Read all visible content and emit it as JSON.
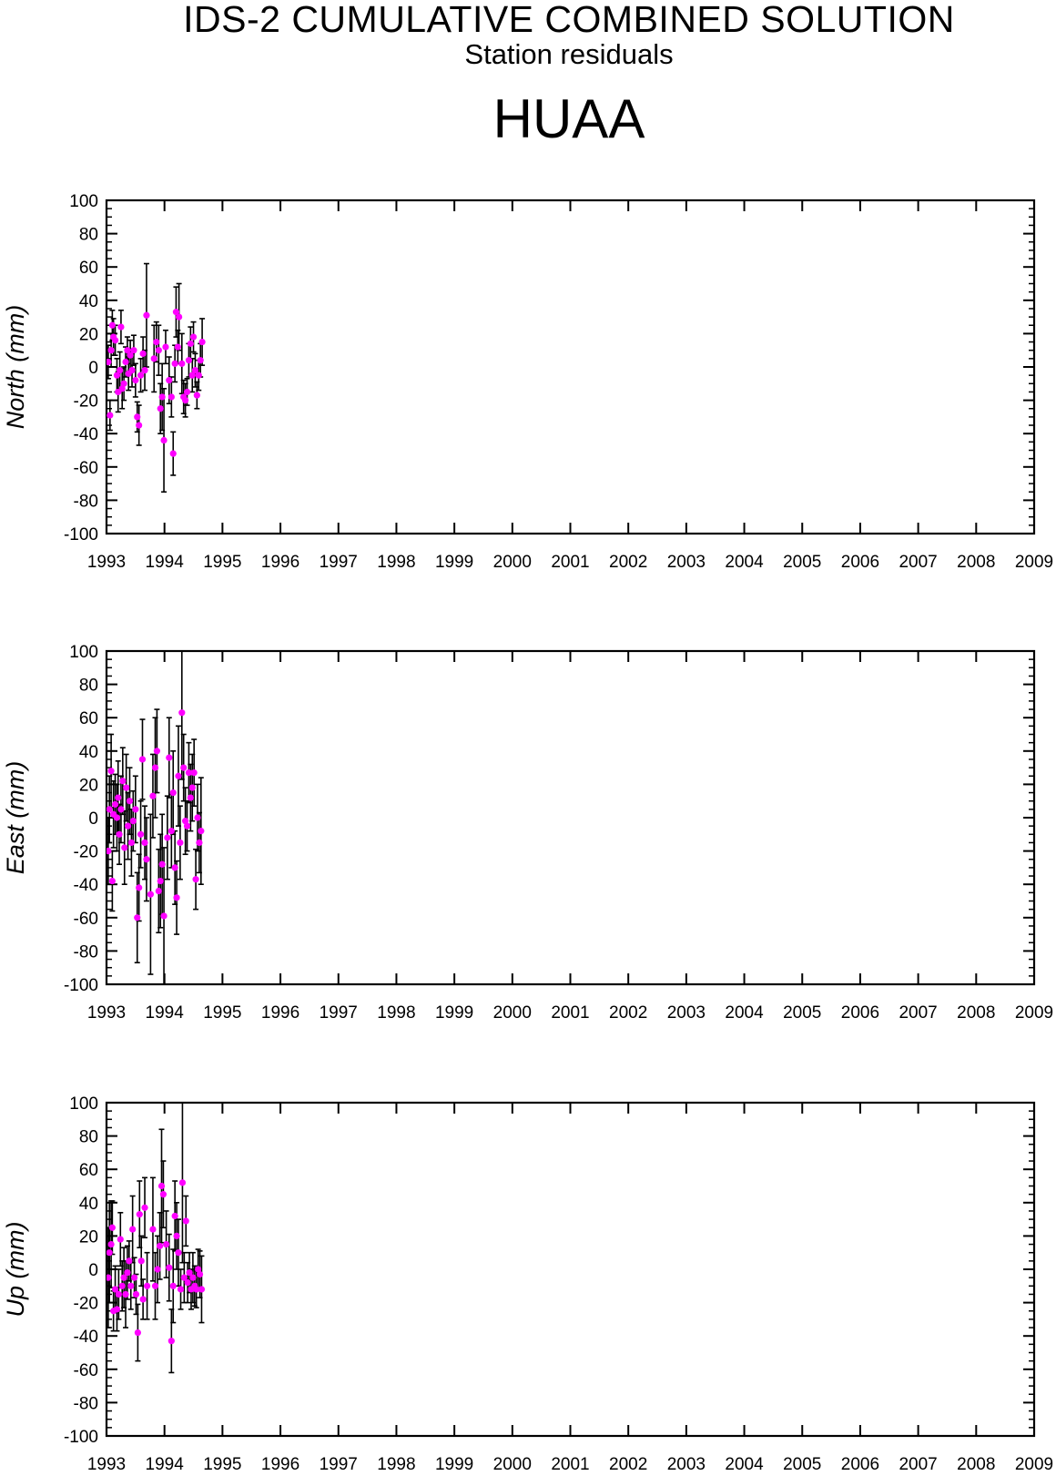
{
  "header": {
    "title": "IDS-2 CUMULATIVE COMBINED SOLUTION",
    "subtitle": "Station residuals",
    "station": "HUAA"
  },
  "colors": {
    "marker": "#ff00ff",
    "errorbar": "#000000",
    "axis": "#000000"
  },
  "chart_data": [
    {
      "type": "scatter",
      "ylabel": "North (mm)",
      "ylim": [
        -100,
        100
      ],
      "xlim": [
        1993,
        2009
      ],
      "x_ticks": [
        "1993",
        "1994",
        "1995",
        "1996",
        "1997",
        "1998",
        "1999",
        "2000",
        "2001",
        "2002",
        "2003",
        "2004",
        "2005",
        "2006",
        "2007",
        "2008",
        "2009"
      ],
      "y_ticks": [
        "100",
        "80",
        "60",
        "40",
        "20",
        "0",
        "-20",
        "-40",
        "-60",
        "-80",
        "-100"
      ],
      "grid": false,
      "points": [
        {
          "x": 1993.03,
          "y": 3,
          "e": 10
        },
        {
          "x": 1993.06,
          "y": -29,
          "e": 9
        },
        {
          "x": 1993.08,
          "y": 10,
          "e": 10
        },
        {
          "x": 1993.1,
          "y": 25,
          "e": 9
        },
        {
          "x": 1993.12,
          "y": 18,
          "e": 11
        },
        {
          "x": 1993.15,
          "y": 16,
          "e": 9
        },
        {
          "x": 1993.18,
          "y": -5,
          "e": 10
        },
        {
          "x": 1993.2,
          "y": -15,
          "e": 12
        },
        {
          "x": 1993.23,
          "y": -2,
          "e": 11
        },
        {
          "x": 1993.25,
          "y": 24,
          "e": 10
        },
        {
          "x": 1993.27,
          "y": -13,
          "e": 12
        },
        {
          "x": 1993.3,
          "y": -10,
          "e": 10
        },
        {
          "x": 1993.33,
          "y": 3,
          "e": 9
        },
        {
          "x": 1993.36,
          "y": 10,
          "e": 8
        },
        {
          "x": 1993.38,
          "y": -4,
          "e": 10
        },
        {
          "x": 1993.41,
          "y": 7,
          "e": 9
        },
        {
          "x": 1993.44,
          "y": -2,
          "e": 10
        },
        {
          "x": 1993.47,
          "y": 10,
          "e": 9
        },
        {
          "x": 1993.5,
          "y": -8,
          "e": 10
        },
        {
          "x": 1993.53,
          "y": -30,
          "e": 9
        },
        {
          "x": 1993.56,
          "y": -35,
          "e": 12
        },
        {
          "x": 1993.59,
          "y": -5,
          "e": 10
        },
        {
          "x": 1993.63,
          "y": 8,
          "e": 10
        },
        {
          "x": 1993.66,
          "y": -2,
          "e": 12
        },
        {
          "x": 1993.69,
          "y": 31,
          "e": 31
        },
        {
          "x": 1993.82,
          "y": 5,
          "e": 20
        },
        {
          "x": 1993.86,
          "y": 15,
          "e": 12
        },
        {
          "x": 1993.9,
          "y": 10,
          "e": 15
        },
        {
          "x": 1993.93,
          "y": -25,
          "e": 15
        },
        {
          "x": 1993.96,
          "y": -18,
          "e": 20
        },
        {
          "x": 1993.99,
          "y": -44,
          "e": 31
        },
        {
          "x": 1994.02,
          "y": 12,
          "e": 10
        },
        {
          "x": 1994.08,
          "y": -8,
          "e": 14
        },
        {
          "x": 1994.12,
          "y": -18,
          "e": 12
        },
        {
          "x": 1994.15,
          "y": -52,
          "e": 13
        },
        {
          "x": 1994.18,
          "y": 2,
          "e": 11
        },
        {
          "x": 1994.2,
          "y": 33,
          "e": 15
        },
        {
          "x": 1994.23,
          "y": 12,
          "e": 10
        },
        {
          "x": 1994.25,
          "y": 30,
          "e": 20
        },
        {
          "x": 1994.3,
          "y": 2,
          "e": 18
        },
        {
          "x": 1994.33,
          "y": -18,
          "e": 10
        },
        {
          "x": 1994.36,
          "y": -20,
          "e": 10
        },
        {
          "x": 1994.39,
          "y": -15,
          "e": 8
        },
        {
          "x": 1994.42,
          "y": 4,
          "e": 10
        },
        {
          "x": 1994.45,
          "y": 14,
          "e": 10
        },
        {
          "x": 1994.48,
          "y": -5,
          "e": 10
        },
        {
          "x": 1994.5,
          "y": 18,
          "e": 9
        },
        {
          "x": 1994.53,
          "y": -2,
          "e": 10
        },
        {
          "x": 1994.56,
          "y": -17,
          "e": 8
        },
        {
          "x": 1994.59,
          "y": -5,
          "e": 9
        },
        {
          "x": 1994.62,
          "y": 4,
          "e": 10
        },
        {
          "x": 1994.65,
          "y": 15,
          "e": 14
        }
      ]
    },
    {
      "type": "scatter",
      "ylabel": "East (mm)",
      "ylim": [
        -100,
        100
      ],
      "xlim": [
        1993,
        2009
      ],
      "x_ticks": [
        "1993",
        "1994",
        "1995",
        "1996",
        "1997",
        "1998",
        "1999",
        "2000",
        "2001",
        "2002",
        "2003",
        "2004",
        "2005",
        "2006",
        "2007",
        "2008",
        "2009"
      ],
      "y_ticks": [
        "100",
        "80",
        "60",
        "40",
        "20",
        "0",
        "-20",
        "-40",
        "-60",
        "-80",
        "-100"
      ],
      "grid": false,
      "points": [
        {
          "x": 1993.03,
          "y": -20,
          "e": 20
        },
        {
          "x": 1993.05,
          "y": 5,
          "e": 20
        },
        {
          "x": 1993.08,
          "y": 28,
          "e": 22
        },
        {
          "x": 1993.1,
          "y": -38,
          "e": 18
        },
        {
          "x": 1993.12,
          "y": 2,
          "e": 20
        },
        {
          "x": 1993.15,
          "y": 8,
          "e": 18
        },
        {
          "x": 1993.18,
          "y": 0,
          "e": 20
        },
        {
          "x": 1993.2,
          "y": 12,
          "e": 22
        },
        {
          "x": 1993.22,
          "y": -10,
          "e": 18
        },
        {
          "x": 1993.25,
          "y": 5,
          "e": 20
        },
        {
          "x": 1993.28,
          "y": 22,
          "e": 20
        },
        {
          "x": 1993.31,
          "y": -18,
          "e": 22
        },
        {
          "x": 1993.34,
          "y": 18,
          "e": 20
        },
        {
          "x": 1993.37,
          "y": -5,
          "e": 20
        },
        {
          "x": 1993.4,
          "y": 10,
          "e": 20
        },
        {
          "x": 1993.43,
          "y": -15,
          "e": 20
        },
        {
          "x": 1993.46,
          "y": -2,
          "e": 18
        },
        {
          "x": 1993.5,
          "y": 5,
          "e": 20
        },
        {
          "x": 1993.53,
          "y": -60,
          "e": 27
        },
        {
          "x": 1993.56,
          "y": -42,
          "e": 20
        },
        {
          "x": 1993.59,
          "y": -10,
          "e": 20
        },
        {
          "x": 1993.62,
          "y": 35,
          "e": 24
        },
        {
          "x": 1993.66,
          "y": -15,
          "e": 22
        },
        {
          "x": 1993.69,
          "y": -25,
          "e": 25
        },
        {
          "x": 1993.76,
          "y": -46,
          "e": 48
        },
        {
          "x": 1993.8,
          "y": 13,
          "e": 25
        },
        {
          "x": 1993.84,
          "y": 30,
          "e": 30
        },
        {
          "x": 1993.87,
          "y": 40,
          "e": 25
        },
        {
          "x": 1993.9,
          "y": -44,
          "e": 25
        },
        {
          "x": 1993.93,
          "y": -38,
          "e": 28
        },
        {
          "x": 1993.96,
          "y": -28,
          "e": 30
        },
        {
          "x": 1993.99,
          "y": -59,
          "e": 41
        },
        {
          "x": 1994.05,
          "y": -12,
          "e": 25
        },
        {
          "x": 1994.08,
          "y": 36,
          "e": 24
        },
        {
          "x": 1994.12,
          "y": -8,
          "e": 22
        },
        {
          "x": 1994.15,
          "y": 15,
          "e": 25
        },
        {
          "x": 1994.18,
          "y": -30,
          "e": 22
        },
        {
          "x": 1994.21,
          "y": -48,
          "e": 22
        },
        {
          "x": 1994.24,
          "y": 25,
          "e": 30
        },
        {
          "x": 1994.27,
          "y": -15,
          "e": 22
        },
        {
          "x": 1994.3,
          "y": 63,
          "e": 40
        },
        {
          "x": 1994.33,
          "y": 30,
          "e": 20
        },
        {
          "x": 1994.36,
          "y": -2,
          "e": 20
        },
        {
          "x": 1994.39,
          "y": -5,
          "e": 15
        },
        {
          "x": 1994.42,
          "y": 27,
          "e": 18
        },
        {
          "x": 1994.45,
          "y": 12,
          "e": 20
        },
        {
          "x": 1994.48,
          "y": 18,
          "e": 20
        },
        {
          "x": 1994.51,
          "y": 27,
          "e": 20
        },
        {
          "x": 1994.54,
          "y": -37,
          "e": 18
        },
        {
          "x": 1994.57,
          "y": 0,
          "e": 20
        },
        {
          "x": 1994.6,
          "y": -15,
          "e": 18
        },
        {
          "x": 1994.63,
          "y": -8,
          "e": 32
        }
      ]
    },
    {
      "type": "scatter",
      "ylabel": "Up (mm)",
      "ylim": [
        -100,
        100
      ],
      "xlim": [
        1993,
        2009
      ],
      "x_ticks": [
        "1993",
        "1994",
        "1995",
        "1996",
        "1997",
        "1998",
        "1999",
        "2000",
        "2001",
        "2002",
        "2003",
        "2004",
        "2005",
        "2006",
        "2007",
        "2008",
        "2009"
      ],
      "y_ticks": [
        "100",
        "80",
        "60",
        "40",
        "20",
        "0",
        "-20",
        "-40",
        "-60",
        "-80",
        "-100"
      ],
      "grid": false,
      "points": [
        {
          "x": 1993.03,
          "y": -5,
          "e": 30
        },
        {
          "x": 1993.05,
          "y": 10,
          "e": 30
        },
        {
          "x": 1993.08,
          "y": 15,
          "e": 26
        },
        {
          "x": 1993.1,
          "y": 25,
          "e": 16
        },
        {
          "x": 1993.12,
          "y": -25,
          "e": 12
        },
        {
          "x": 1993.15,
          "y": -12,
          "e": 14
        },
        {
          "x": 1993.18,
          "y": -24,
          "e": 13
        },
        {
          "x": 1993.21,
          "y": -15,
          "e": 15
        },
        {
          "x": 1993.24,
          "y": 18,
          "e": 16
        },
        {
          "x": 1993.27,
          "y": -10,
          "e": 15
        },
        {
          "x": 1993.3,
          "y": -5,
          "e": 18
        },
        {
          "x": 1993.33,
          "y": -15,
          "e": 20
        },
        {
          "x": 1993.36,
          "y": -2,
          "e": 16
        },
        {
          "x": 1993.39,
          "y": 5,
          "e": 12
        },
        {
          "x": 1993.42,
          "y": -10,
          "e": 14
        },
        {
          "x": 1993.45,
          "y": 24,
          "e": 20
        },
        {
          "x": 1993.48,
          "y": -5,
          "e": 12
        },
        {
          "x": 1993.51,
          "y": -15,
          "e": 12
        },
        {
          "x": 1993.54,
          "y": -38,
          "e": 17
        },
        {
          "x": 1993.57,
          "y": 33,
          "e": 20
        },
        {
          "x": 1993.6,
          "y": 5,
          "e": 15
        },
        {
          "x": 1993.63,
          "y": -18,
          "e": 12
        },
        {
          "x": 1993.66,
          "y": 37,
          "e": 18
        },
        {
          "x": 1993.7,
          "y": -10,
          "e": 20
        },
        {
          "x": 1993.8,
          "y": 24,
          "e": 31
        },
        {
          "x": 1993.84,
          "y": -10,
          "e": 20
        },
        {
          "x": 1993.88,
          "y": 0,
          "e": 20
        },
        {
          "x": 1993.92,
          "y": 14,
          "e": 20
        },
        {
          "x": 1993.95,
          "y": 50,
          "e": 34
        },
        {
          "x": 1993.98,
          "y": 45,
          "e": 20
        },
        {
          "x": 1994.03,
          "y": 15,
          "e": 20
        },
        {
          "x": 1994.08,
          "y": 1,
          "e": 20
        },
        {
          "x": 1994.12,
          "y": -43,
          "e": 19
        },
        {
          "x": 1994.15,
          "y": -10,
          "e": 22
        },
        {
          "x": 1994.18,
          "y": 32,
          "e": 21
        },
        {
          "x": 1994.21,
          "y": 20,
          "e": 20
        },
        {
          "x": 1994.24,
          "y": 10,
          "e": 20
        },
        {
          "x": 1994.28,
          "y": -12,
          "e": 12
        },
        {
          "x": 1994.31,
          "y": 52,
          "e": 48
        },
        {
          "x": 1994.34,
          "y": -5,
          "e": 15
        },
        {
          "x": 1994.37,
          "y": 29,
          "e": 15
        },
        {
          "x": 1994.4,
          "y": -8,
          "e": 12
        },
        {
          "x": 1994.43,
          "y": -2,
          "e": 12
        },
        {
          "x": 1994.46,
          "y": -12,
          "e": 12
        },
        {
          "x": 1994.49,
          "y": -5,
          "e": 15
        },
        {
          "x": 1994.52,
          "y": -10,
          "e": 12
        },
        {
          "x": 1994.55,
          "y": -12,
          "e": 11
        },
        {
          "x": 1994.58,
          "y": 0,
          "e": 12
        },
        {
          "x": 1994.61,
          "y": -3,
          "e": 14
        },
        {
          "x": 1994.64,
          "y": -12,
          "e": 20
        }
      ]
    }
  ]
}
